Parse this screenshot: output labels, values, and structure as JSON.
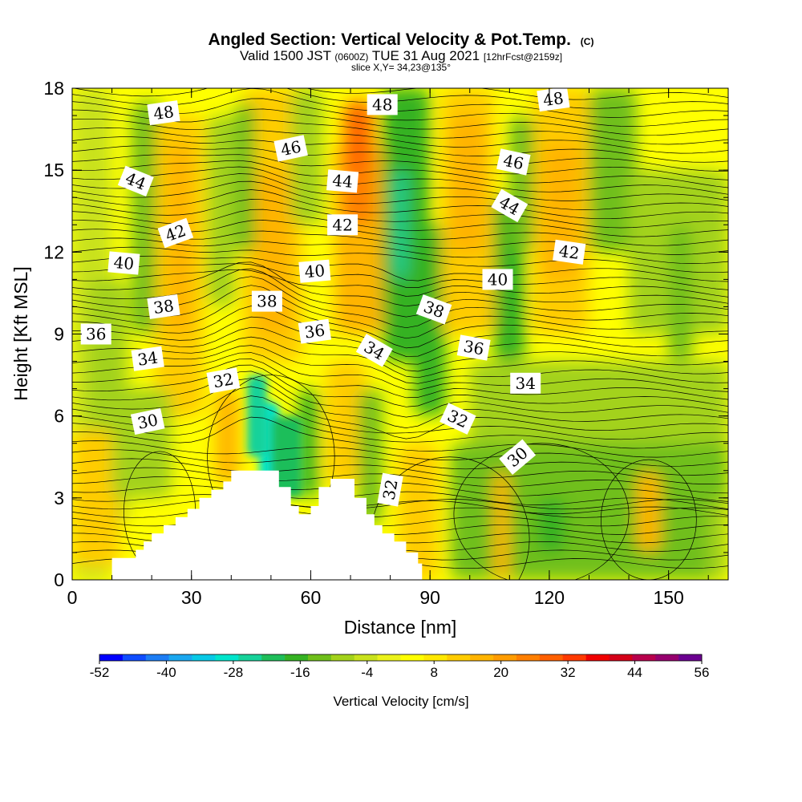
{
  "chart_data": {
    "type": "heatmap",
    "title": "Angled Section: Vertical Velocity & Pot.Temp.",
    "title_mark": "(C)",
    "subtitle": {
      "valid": "Valid 1500 JST",
      "utc": "(0600Z)",
      "date": "TUE 31 Aug 2021",
      "forecast": "[12hrFcst@2159z]"
    },
    "slice_label": "slice X,Y= 34,23@135°",
    "xlabel": "Distance [nm]",
    "ylabel": "Height [Kft MSL]",
    "xlim": [
      0,
      165
    ],
    "ylim": [
      0,
      18
    ],
    "x_ticks": [
      0,
      30,
      60,
      90,
      120,
      150
    ],
    "y_ticks": [
      0,
      3,
      6,
      9,
      12,
      15,
      18
    ],
    "x_tick_labels": [
      "0",
      "30",
      "60",
      "90",
      "120",
      "150"
    ],
    "y_tick_labels": [
      "0",
      "3",
      "6",
      "9",
      "12",
      "15",
      "18"
    ],
    "colorbar": {
      "label": "Vertical Velocity [cm/s]",
      "min": -52,
      "max": 56,
      "tick_values": [
        -52,
        -40,
        -28,
        -16,
        -4,
        8,
        20,
        32,
        44,
        56
      ],
      "tick_labels": [
        "-52",
        "-40",
        "-28",
        "-16",
        "-4",
        "8",
        "20",
        "32",
        "44",
        "56"
      ],
      "colors": [
        "#0000ff",
        "#0f4cff",
        "#1d7df4",
        "#1aa7ef",
        "#08c9e6",
        "#00e5cc",
        "#17d29a",
        "#1fbe5a",
        "#35b223",
        "#6fbf1a",
        "#a3d21b",
        "#c9e21d",
        "#ebf21b",
        "#ffff00",
        "#ffe800",
        "#ffcc00",
        "#ffb400",
        "#ff9c00",
        "#ff7f00",
        "#ff6000",
        "#ff3a00",
        "#f00000",
        "#d40018",
        "#b8004c",
        "#96006e",
        "#6b0090"
      ]
    },
    "contour_variable": "Potential temperature (C)",
    "contour_labels": [
      {
        "text": "48",
        "x": 23,
        "y": 17.1,
        "rot": -8
      },
      {
        "text": "48",
        "x": 78,
        "y": 17.4,
        "rot": 0
      },
      {
        "text": "48",
        "x": 121,
        "y": 17.6,
        "rot": -8
      },
      {
        "text": "46",
        "x": 55,
        "y": 15.8,
        "rot": -12
      },
      {
        "text": "46",
        "x": 111,
        "y": 15.3,
        "rot": 12
      },
      {
        "text": "44",
        "x": 16,
        "y": 14.6,
        "rot": 22
      },
      {
        "text": "44",
        "x": 68,
        "y": 14.6,
        "rot": 5
      },
      {
        "text": "44",
        "x": 110,
        "y": 13.7,
        "rot": 30
      },
      {
        "text": "42",
        "x": 26,
        "y": 12.7,
        "rot": -20
      },
      {
        "text": "42",
        "x": 68,
        "y": 13.0,
        "rot": 0
      },
      {
        "text": "42",
        "x": 125,
        "y": 12.0,
        "rot": 8
      },
      {
        "text": "40",
        "x": 13,
        "y": 11.6,
        "rot": 5
      },
      {
        "text": "40",
        "x": 61,
        "y": 11.3,
        "rot": -5
      },
      {
        "text": "40",
        "x": 107,
        "y": 11.0,
        "rot": 0
      },
      {
        "text": "38",
        "x": 23,
        "y": 10.0,
        "rot": -8
      },
      {
        "text": "38",
        "x": 49,
        "y": 10.2,
        "rot": 0
      },
      {
        "text": "38",
        "x": 91,
        "y": 9.9,
        "rot": 20
      },
      {
        "text": "36",
        "x": 6,
        "y": 9.0,
        "rot": 0
      },
      {
        "text": "36",
        "x": 61,
        "y": 9.1,
        "rot": -8
      },
      {
        "text": "36",
        "x": 101,
        "y": 8.5,
        "rot": 10
      },
      {
        "text": "34",
        "x": 19,
        "y": 8.1,
        "rot": -8
      },
      {
        "text": "34",
        "x": 76,
        "y": 8.4,
        "rot": 30
      },
      {
        "text": "34",
        "x": 114,
        "y": 7.2,
        "rot": 0
      },
      {
        "text": "32",
        "x": 38,
        "y": 7.3,
        "rot": -10
      },
      {
        "text": "32",
        "x": 97,
        "y": 5.9,
        "rot": 25
      },
      {
        "text": "32",
        "x": 80,
        "y": 3.3,
        "rot": -80
      },
      {
        "text": "30",
        "x": 19,
        "y": 5.8,
        "rot": -12
      },
      {
        "text": "30",
        "x": 112,
        "y": 4.5,
        "rot": -40
      }
    ],
    "terrain_profile": [
      [
        0,
        0
      ],
      [
        10,
        0
      ],
      [
        10,
        0.8
      ],
      [
        16,
        0.8
      ],
      [
        16,
        1.1
      ],
      [
        18,
        1.1
      ],
      [
        18,
        1.4
      ],
      [
        20,
        1.4
      ],
      [
        20,
        1.7
      ],
      [
        23,
        1.7
      ],
      [
        23,
        2.0
      ],
      [
        26,
        2.0
      ],
      [
        26,
        2.3
      ],
      [
        29,
        2.3
      ],
      [
        29,
        2.6
      ],
      [
        32,
        2.6
      ],
      [
        32,
        3.0
      ],
      [
        35,
        3.0
      ],
      [
        35,
        3.3
      ],
      [
        38,
        3.3
      ],
      [
        38,
        3.6
      ],
      [
        40,
        3.6
      ],
      [
        40,
        4.0
      ],
      [
        52,
        4.0
      ],
      [
        52,
        3.4
      ],
      [
        55,
        3.4
      ],
      [
        55,
        2.7
      ],
      [
        57,
        2.7
      ],
      [
        57,
        2.4
      ],
      [
        60,
        2.4
      ],
      [
        60,
        2.7
      ],
      [
        62,
        2.7
      ],
      [
        62,
        3.4
      ],
      [
        65,
        3.4
      ],
      [
        65,
        3.7
      ],
      [
        71,
        3.7
      ],
      [
        71,
        3.0
      ],
      [
        74,
        3.0
      ],
      [
        74,
        2.4
      ],
      [
        76,
        2.4
      ],
      [
        76,
        2.0
      ],
      [
        78,
        2.0
      ],
      [
        78,
        1.7
      ],
      [
        81,
        1.7
      ],
      [
        81,
        1.4
      ],
      [
        84,
        1.4
      ],
      [
        84,
        1.0
      ],
      [
        87,
        1.0
      ],
      [
        87,
        0.6
      ],
      [
        88,
        0.6
      ],
      [
        88,
        0
      ]
    ]
  }
}
